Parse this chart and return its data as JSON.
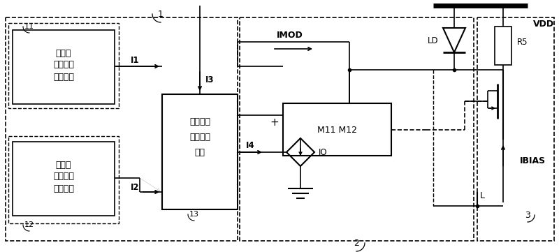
{
  "bg_color": "#ffffff",
  "box1_label": [
    "正温度",
    "系数电流",
    "产生模块"
  ],
  "box2_label": [
    "零温度",
    "系数电流",
    "产生模块"
  ],
  "box3_label": [
    "温度补偿",
    "比例控制",
    "模块"
  ],
  "label_11": "11",
  "label_12": "12",
  "label_13": "13",
  "label_1": "1",
  "label_2": "2",
  "label_3": "3",
  "label_I1": "I1",
  "label_I2": "I2",
  "label_I3": "I3",
  "label_I4": "I4",
  "label_IMOD": "IMOD",
  "label_IO": "IO",
  "label_IBIAS": "IBIAS",
  "label_LD": "LD",
  "label_R5": "R5",
  "label_VDD": "VDD",
  "label_M11M12": "M11 M12"
}
